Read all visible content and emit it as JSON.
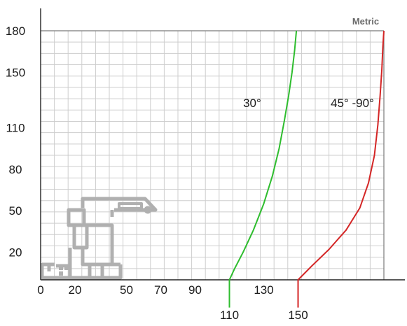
{
  "chart_data": {
    "type": "line",
    "title": "",
    "xlabel": "",
    "ylabel": "",
    "badge": "Metric",
    "grid": true,
    "xlim": [
      0,
      200
    ],
    "ylim": [
      0,
      180
    ],
    "x_ticks": [
      {
        "value": 0,
        "label": "0",
        "row": "upper"
      },
      {
        "value": 20,
        "label": "20",
        "row": "upper"
      },
      {
        "value": 50,
        "label": "50",
        "row": "upper"
      },
      {
        "value": 70,
        "label": "70",
        "row": "upper"
      },
      {
        "value": 90,
        "label": "90",
        "row": "upper"
      },
      {
        "value": 110,
        "label": "110",
        "row": "lower"
      },
      {
        "value": 130,
        "label": "130",
        "row": "upper"
      },
      {
        "value": 150,
        "label": "150",
        "row": "lower"
      }
    ],
    "y_ticks": [
      {
        "value": 20,
        "label": "20"
      },
      {
        "value": 50,
        "label": "50"
      },
      {
        "value": 80,
        "label": "80"
      },
      {
        "value": 110,
        "label": "110"
      },
      {
        "value": 150,
        "label": "150"
      },
      {
        "value": 180,
        "label": "180"
      }
    ],
    "series": [
      {
        "name": "30°",
        "color": "#2ebd2e",
        "label_at": [
          118,
          125
        ],
        "stem_to": -20,
        "x": [
          110,
          113,
          118,
          124,
          130,
          135,
          139,
          142,
          144.5,
          146.5,
          148,
          149
        ],
        "y": [
          0,
          8,
          20,
          36,
          55,
          75,
          95,
          115,
          133,
          150,
          166,
          180
        ]
      },
      {
        "name": "45° -90°",
        "color": "#d42626",
        "label_at": [
          169,
          125
        ],
        "stem_to": -20,
        "x": [
          150,
          158,
          168,
          178,
          186,
          191,
          194.5,
          196.5,
          197.8,
          198.8,
          199.4,
          200
        ],
        "y": [
          0,
          10,
          22,
          36,
          52,
          70,
          90,
          112,
          133,
          152,
          168,
          180
        ]
      }
    ],
    "profile": {
      "type": "window-profile-cross-section",
      "color": "#b0b0b0"
    }
  }
}
